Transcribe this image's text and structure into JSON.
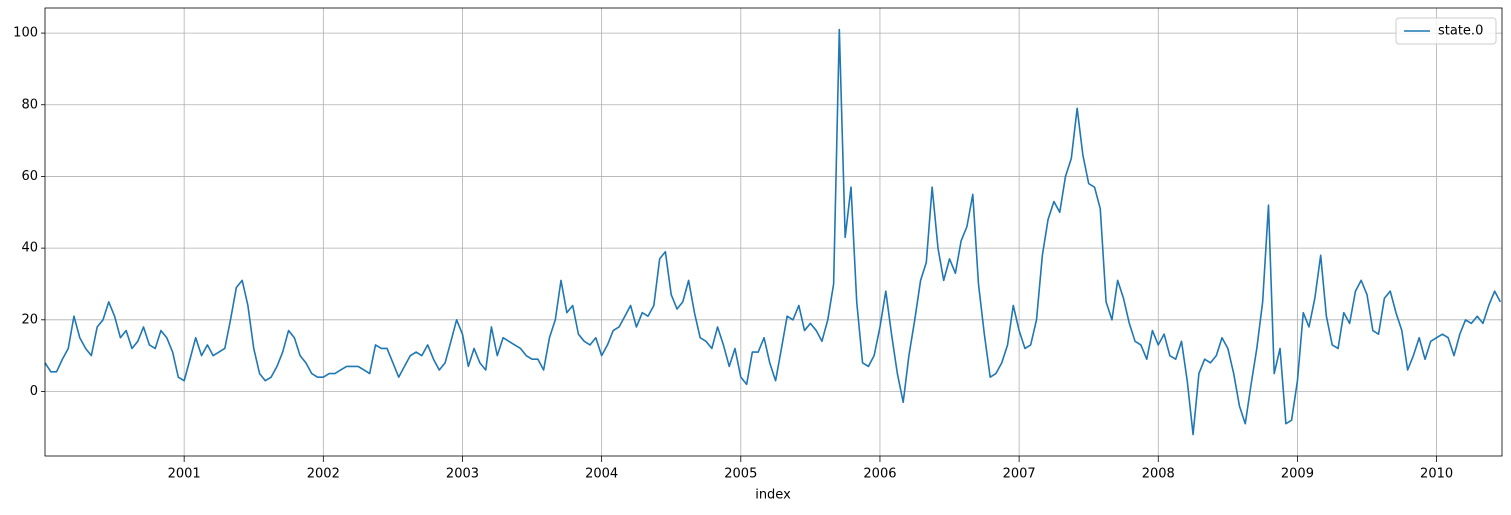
{
  "chart_data": {
    "type": "line",
    "x_label": "index",
    "x": [
      2000,
      2000.042,
      2000.083,
      2000.125,
      2000.167,
      2000.208,
      2000.25,
      2000.292,
      2000.333,
      2000.375,
      2000.417,
      2000.458,
      2000.5,
      2000.542,
      2000.583,
      2000.625,
      2000.667,
      2000.708,
      2000.75,
      2000.792,
      2000.833,
      2000.875,
      2000.917,
      2000.958,
      2001,
      2001.042,
      2001.083,
      2001.125,
      2001.167,
      2001.208,
      2001.25,
      2001.292,
      2001.333,
      2001.375,
      2001.417,
      2001.458,
      2001.5,
      2001.542,
      2001.583,
      2001.625,
      2001.667,
      2001.708,
      2001.75,
      2001.792,
      2001.833,
      2001.875,
      2001.917,
      2001.958,
      2002,
      2002.042,
      2002.083,
      2002.125,
      2002.167,
      2002.208,
      2002.25,
      2002.292,
      2002.333,
      2002.375,
      2002.417,
      2002.458,
      2002.5,
      2002.542,
      2002.583,
      2002.625,
      2002.667,
      2002.708,
      2002.75,
      2002.792,
      2002.833,
      2002.875,
      2002.917,
      2002.958,
      2003,
      2003.042,
      2003.083,
      2003.125,
      2003.167,
      2003.208,
      2003.25,
      2003.292,
      2003.333,
      2003.375,
      2003.417,
      2003.458,
      2003.5,
      2003.542,
      2003.583,
      2003.625,
      2003.667,
      2003.708,
      2003.75,
      2003.792,
      2003.833,
      2003.875,
      2003.917,
      2003.958,
      2004,
      2004.042,
      2004.083,
      2004.125,
      2004.167,
      2004.208,
      2004.25,
      2004.292,
      2004.333,
      2004.375,
      2004.417,
      2004.458,
      2004.5,
      2004.542,
      2004.583,
      2004.625,
      2004.667,
      2004.708,
      2004.75,
      2004.792,
      2004.833,
      2004.875,
      2004.917,
      2004.958,
      2005,
      2005.042,
      2005.083,
      2005.125,
      2005.167,
      2005.208,
      2005.25,
      2005.292,
      2005.333,
      2005.375,
      2005.417,
      2005.458,
      2005.5,
      2005.542,
      2005.583,
      2005.625,
      2005.667,
      2005.708,
      2005.75,
      2005.792,
      2005.833,
      2005.875,
      2005.917,
      2005.958,
      2006,
      2006.042,
      2006.083,
      2006.125,
      2006.167,
      2006.208,
      2006.25,
      2006.292,
      2006.333,
      2006.375,
      2006.417,
      2006.458,
      2006.5,
      2006.542,
      2006.583,
      2006.625,
      2006.667,
      2006.708,
      2006.75,
      2006.792,
      2006.833,
      2006.875,
      2006.917,
      2006.958,
      2007,
      2007.042,
      2007.083,
      2007.125,
      2007.167,
      2007.208,
      2007.25,
      2007.292,
      2007.333,
      2007.375,
      2007.417,
      2007.458,
      2007.5,
      2007.542,
      2007.583,
      2007.625,
      2007.667,
      2007.708,
      2007.75,
      2007.792,
      2007.833,
      2007.875,
      2007.917,
      2007.958,
      2008,
      2008.042,
      2008.083,
      2008.125,
      2008.167,
      2008.208,
      2008.25,
      2008.292,
      2008.333,
      2008.375,
      2008.417,
      2008.458,
      2008.5,
      2008.542,
      2008.583,
      2008.625,
      2008.667,
      2008.708,
      2008.75,
      2008.792,
      2008.833,
      2008.875,
      2008.917,
      2008.958,
      2009,
      2009.042,
      2009.083,
      2009.125,
      2009.167,
      2009.208,
      2009.25,
      2009.292,
      2009.333,
      2009.375,
      2009.417,
      2009.458,
      2009.5,
      2009.542,
      2009.583,
      2009.625,
      2009.667,
      2009.708,
      2009.75,
      2009.792,
      2009.833,
      2009.875,
      2009.917,
      2009.958,
      2010,
      2010.042,
      2010.083,
      2010.125,
      2010.167,
      2010.208,
      2010.25,
      2010.292,
      2010.333,
      2010.375,
      2010.417,
      2010.458
    ],
    "series": [
      {
        "name": "state.0",
        "color": "#1f77b4",
        "values": [
          8,
          5.5,
          5.5,
          9,
          12,
          21,
          15,
          12,
          10,
          18,
          20,
          25,
          21,
          15,
          17,
          12,
          14,
          18,
          13,
          12,
          17,
          15,
          11,
          4,
          3,
          9,
          15,
          10,
          13,
          10,
          11,
          12,
          20,
          29,
          31,
          24,
          12,
          5,
          3,
          4,
          7,
          11,
          17,
          15,
          10,
          8,
          5,
          4,
          4,
          5,
          5,
          6,
          7,
          7,
          7,
          6,
          5,
          13,
          12,
          12,
          8,
          4,
          7,
          10,
          11,
          10,
          13,
          9,
          6,
          8,
          14,
          20,
          16,
          7,
          12,
          8,
          6,
          18,
          10,
          15,
          14,
          13,
          12,
          10,
          9,
          9,
          6,
          15,
          20,
          31,
          22,
          24,
          16,
          14,
          13,
          15,
          10,
          13,
          17,
          18,
          21,
          24,
          18,
          22,
          21,
          24,
          37,
          39,
          27,
          23,
          25,
          31,
          22,
          15,
          14,
          12,
          18,
          13,
          7,
          12,
          4,
          2,
          11,
          11,
          15,
          8,
          3,
          12,
          21,
          20,
          24,
          17,
          19,
          17,
          14,
          20,
          30,
          101,
          43,
          57,
          25,
          8,
          7,
          10,
          18,
          28,
          16,
          5,
          -3,
          10,
          20,
          31,
          36,
          57,
          40,
          31,
          37,
          33,
          42,
          46,
          55,
          30,
          16,
          4,
          5,
          8,
          13,
          24,
          17,
          12,
          13,
          20,
          38,
          48,
          53,
          50,
          60,
          65,
          79,
          66,
          58,
          57,
          51,
          25,
          20,
          31,
          26,
          19,
          14,
          13,
          9,
          17,
          13,
          16,
          10,
          9,
          14,
          3,
          -12,
          5,
          9,
          8,
          10,
          15,
          12,
          5,
          -4,
          -9,
          2,
          12,
          25,
          52,
          5,
          12,
          -9,
          -8,
          3,
          22,
          18,
          26,
          38,
          21,
          13,
          12,
          22,
          19,
          28,
          31,
          27,
          17,
          16,
          26,
          28,
          22,
          17,
          6,
          10,
          15,
          9,
          14,
          15,
          16,
          15,
          10,
          16,
          20,
          19,
          21,
          19,
          24,
          28,
          25
        ]
      }
    ],
    "xlim": [
      2000,
      2010.47
    ],
    "xticks": [
      2001,
      2002,
      2003,
      2004,
      2005,
      2006,
      2007,
      2008,
      2009,
      2010
    ],
    "ylim": [
      -18,
      107
    ],
    "yticks": [
      0,
      20,
      40,
      60,
      80,
      100
    ],
    "grid": true,
    "legend": "upper right"
  }
}
